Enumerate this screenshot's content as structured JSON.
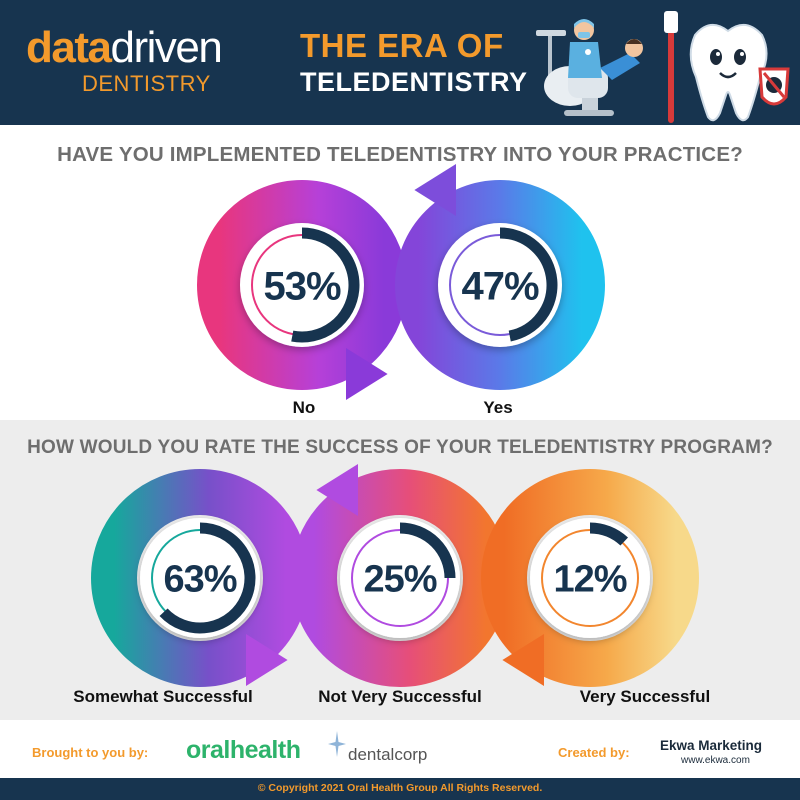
{
  "header": {
    "logo_data": "data",
    "logo_driven": "driven",
    "logo_dentistry": "DENTISTRY",
    "title_line1": "THE ERA OF",
    "title_line2": "TELEDENTISTRY"
  },
  "colors": {
    "navy": "#17344f",
    "orange": "#f39a2c",
    "ring_dark": "#17344f",
    "section_bg": "#ededed"
  },
  "chart_data": [
    {
      "type": "pie",
      "title": "HAVE YOU IMPLEMENTED TELEDENTISTRY INTO YOUR PRACTICE?",
      "categories": [
        "No",
        "Yes"
      ],
      "values": [
        53,
        47
      ],
      "value_labels": [
        "53%",
        "47%"
      ],
      "unit": "%"
    },
    {
      "type": "pie",
      "title": "HOW WOULD YOU RATE THE SUCCESS OF YOUR TELEDENTISTRY PROGRAM?",
      "categories": [
        "Somewhat Successful",
        "Not Very Successful",
        "Very Successful"
      ],
      "values": [
        63,
        25,
        12
      ],
      "value_labels": [
        "63%",
        "25%",
        "12%"
      ],
      "unit": "%"
    }
  ],
  "footer": {
    "brought_label": "Brought to you by:",
    "sponsor1": "oralhealth",
    "sponsor2": "dentalcorp",
    "created_label": "Created by:",
    "creator": "Ekwa Marketing",
    "creator_url": "www.ekwa.com",
    "copyright": "© Copyright 2021 Oral Health Group All Rights Reserved."
  },
  "icons": {
    "dentist": "dentist-chair-illustration",
    "tooth": "tooth-mascot-illustration",
    "star": "sparkle-star-icon"
  }
}
